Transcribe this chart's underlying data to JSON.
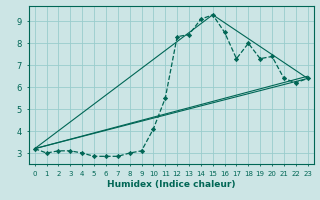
{
  "background_color": "#cce5e5",
  "grid_color": "#99cccc",
  "line_color": "#006655",
  "xlabel": "Humidex (Indice chaleur)",
  "xlim": [
    -0.5,
    23.5
  ],
  "ylim": [
    2.5,
    9.7
  ],
  "yticks": [
    3,
    4,
    5,
    6,
    7,
    8,
    9
  ],
  "xticks": [
    0,
    1,
    2,
    3,
    4,
    5,
    6,
    7,
    8,
    9,
    10,
    11,
    12,
    13,
    14,
    15,
    16,
    17,
    18,
    19,
    20,
    21,
    22,
    23
  ],
  "curve": {
    "x": [
      0,
      1,
      2,
      3,
      4,
      5,
      6,
      7,
      8,
      9,
      10,
      11,
      12,
      13,
      14,
      15,
      16,
      17,
      18,
      19,
      20,
      21,
      22,
      23
    ],
    "y": [
      3.2,
      3.0,
      3.1,
      3.1,
      3.0,
      2.85,
      2.85,
      2.85,
      3.0,
      3.1,
      4.1,
      5.5,
      8.3,
      8.4,
      9.1,
      9.3,
      8.5,
      7.3,
      8.0,
      7.3,
      7.4,
      6.4,
      6.2,
      6.4
    ]
  },
  "straight_lines": [
    {
      "x": [
        0,
        15,
        23
      ],
      "y": [
        3.2,
        9.3,
        6.4
      ]
    },
    {
      "x": [
        0,
        23
      ],
      "y": [
        3.2,
        6.5
      ]
    },
    {
      "x": [
        0,
        23
      ],
      "y": [
        3.2,
        6.4
      ]
    }
  ]
}
